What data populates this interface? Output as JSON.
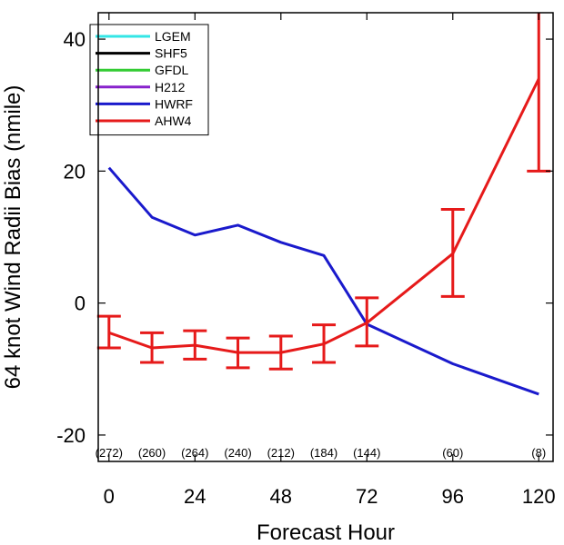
{
  "chart_data": {
    "type": "line",
    "xlabel": "Forecast Hour",
    "ylabel": "64 knot Wind Radii Bias (nmile)",
    "xlim": [
      -3,
      124
    ],
    "ylim": [
      -24,
      44
    ],
    "x_ticks": [
      0,
      24,
      48,
      72,
      96,
      120
    ],
    "x_tick_labels": [
      "0",
      "24",
      "48",
      "72",
      "96",
      "120"
    ],
    "y_ticks": [
      -20,
      0,
      20,
      40
    ],
    "y_tick_labels": [
      "-20",
      "0",
      "20",
      "40"
    ],
    "grid": false,
    "legend_position": "top-left",
    "legend": [
      {
        "name": "LGEM",
        "color": "#33e6e6"
      },
      {
        "name": "SHF5",
        "color": "#000000"
      },
      {
        "name": "GFDL",
        "color": "#33cc33"
      },
      {
        "name": "H212",
        "color": "#8822cc"
      },
      {
        "name": "HWRF",
        "color": "#1a1acc"
      },
      {
        "name": "AHW4",
        "color": "#e61a1a"
      }
    ],
    "series": [
      {
        "name": "HWRF",
        "color": "#1a1acc",
        "x": [
          0,
          12,
          24,
          36,
          48,
          60,
          72,
          96,
          120
        ],
        "y": [
          20.5,
          13,
          10.3,
          11.8,
          9.2,
          7.2,
          -3.2,
          -9.2,
          -13.8
        ]
      },
      {
        "name": "AHW4",
        "color": "#e61a1a",
        "x": [
          0,
          12,
          24,
          36,
          48,
          60,
          72,
          96,
          120
        ],
        "y": [
          -4.5,
          -6.8,
          -6.4,
          -7.5,
          -7.5,
          -6.2,
          -3,
          7.5,
          34
        ],
        "err_low": [
          -6.8,
          -9,
          -8.5,
          -9.8,
          -10,
          -9,
          -6.5,
          1,
          20
        ],
        "err_high": [
          -2,
          -4.5,
          -4.2,
          -5.3,
          -5,
          -3.3,
          0.8,
          14.2,
          44.5
        ]
      }
    ],
    "counts": [
      {
        "x": 0,
        "label": "(272)"
      },
      {
        "x": 12,
        "label": "(260)"
      },
      {
        "x": 24,
        "label": "(264)"
      },
      {
        "x": 36,
        "label": "(240)"
      },
      {
        "x": 48,
        "label": "(212)"
      },
      {
        "x": 60,
        "label": "(184)"
      },
      {
        "x": 72,
        "label": "(144)"
      },
      {
        "x": 96,
        "label": "(60)"
      },
      {
        "x": 120,
        "label": "(8)"
      }
    ]
  }
}
